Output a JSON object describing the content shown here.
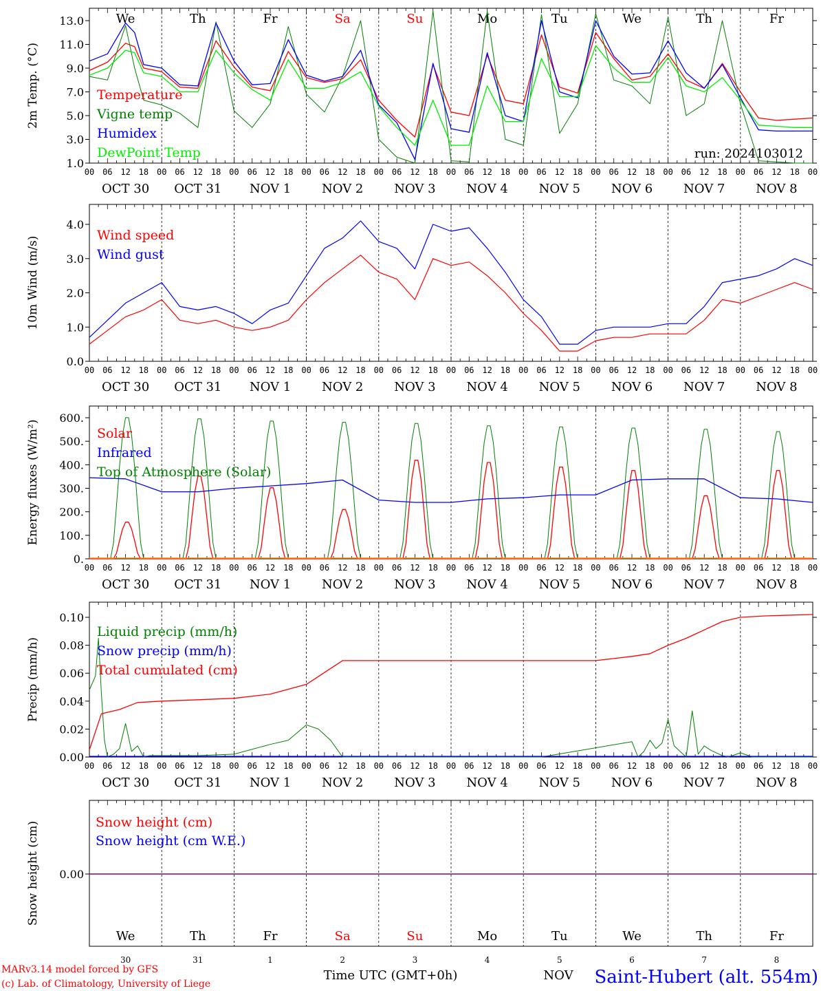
{
  "station": "Saint-Hubert (alt. 554m)",
  "credits": [
    "MARv3.14 model forced by GFS",
    "(c) Lab. of Climatology, University of Liege"
  ],
  "x_axis_title": "Time UTC (GMT+0h)",
  "bottom_overlap_text": "NOV",
  "run_label": "run: 2024103012",
  "hour_ticks": [
    "00",
    "06",
    "12",
    "18"
  ],
  "days": [
    {
      "date": "OCT 30",
      "weekday": "We",
      "daynum": "30",
      "weekend": false
    },
    {
      "date": "OCT 31",
      "weekday": "Th",
      "daynum": "31",
      "weekend": false
    },
    {
      "date": "NOV  1",
      "weekday": "Fr",
      "daynum": "1",
      "weekend": false
    },
    {
      "date": "NOV  2",
      "weekday": "Sa",
      "daynum": "2",
      "weekend": true
    },
    {
      "date": "NOV  3",
      "weekday": "Su",
      "daynum": "3",
      "weekend": true
    },
    {
      "date": "NOV  4",
      "weekday": "Mo",
      "daynum": "4",
      "weekend": false
    },
    {
      "date": "NOV  5",
      "weekday": "Tu",
      "daynum": "5",
      "weekend": false
    },
    {
      "date": "NOV  6",
      "weekday": "We",
      "daynum": "6",
      "weekend": false
    },
    {
      "date": "NOV  7",
      "weekday": "Th",
      "daynum": "7",
      "weekend": false
    },
    {
      "date": "NOV  8",
      "weekday": "Fr",
      "daynum": "8",
      "weekend": false
    }
  ],
  "colors": {
    "red": "#ff0000",
    "green": "#008000",
    "blue": "#0000ff",
    "lightgreen": "#00ee00",
    "purple": "#800080",
    "axis": "#000000"
  },
  "chart_data": [
    {
      "type": "line",
      "ylabel": "2m Temp. (°C)",
      "ylim": [
        1.0,
        14.0
      ],
      "yticks": [
        "1.0",
        "3.0",
        "5.0",
        "7.0",
        "9.0",
        "11.0",
        "13.0"
      ],
      "x_unit": "hours since OCT 30 00 UTC",
      "series": [
        {
          "name": "Temperature",
          "color": "#ff0000",
          "x": [
            0,
            6,
            12,
            15,
            18,
            24,
            30,
            36,
            42,
            48,
            54,
            60,
            66,
            72,
            78,
            84,
            90,
            96,
            102,
            108,
            114,
            120,
            126,
            132,
            138,
            144,
            150,
            156,
            162,
            168,
            174,
            180,
            186,
            192,
            198,
            204,
            210,
            216,
            222,
            228,
            234,
            240
          ],
          "y": [
            8.8,
            9.5,
            11.1,
            10.8,
            9.0,
            8.7,
            7.4,
            7.3,
            11.3,
            9.1,
            7.4,
            7.1,
            10.4,
            8.2,
            7.8,
            8.1,
            9.7,
            6.3,
            4.6,
            3.2,
            9.3,
            5.3,
            5.0,
            10.1,
            6.3,
            6.0,
            11.8,
            7.4,
            6.9,
            12.0,
            9.8,
            8.0,
            8.3,
            10.2,
            8.0,
            7.3,
            9.4,
            7.0,
            4.8,
            4.6,
            4.7,
            4.8
          ]
        },
        {
          "name": "Vigne temp",
          "color": "#008000",
          "x": [
            0,
            6,
            12,
            15,
            18,
            24,
            30,
            36,
            42,
            48,
            54,
            60,
            66,
            72,
            78,
            84,
            90,
            96,
            102,
            108,
            114,
            120,
            126,
            132,
            138,
            144,
            150,
            156,
            162,
            168,
            174,
            180,
            186,
            192,
            198,
            204,
            210,
            216,
            222,
            228,
            234,
            240
          ],
          "y": [
            8.3,
            8.0,
            12.6,
            9.0,
            6.3,
            5.9,
            5.2,
            4.0,
            12.9,
            5.4,
            4.0,
            6.0,
            12.5,
            6.8,
            5.3,
            8.3,
            13.0,
            3.0,
            1.5,
            1.0,
            13.8,
            1.2,
            1.1,
            13.8,
            3.0,
            2.5,
            13.5,
            3.5,
            6.0,
            13.6,
            8.0,
            7.5,
            6.0,
            13.3,
            5.0,
            6.0,
            13.0,
            6.0,
            1.2,
            1.1,
            1.0,
            1.0
          ]
        },
        {
          "name": "Humidex",
          "color": "#0000ff",
          "x": [
            0,
            6,
            12,
            15,
            18,
            24,
            30,
            36,
            42,
            48,
            54,
            60,
            66,
            72,
            78,
            84,
            90,
            96,
            102,
            108,
            114,
            120,
            126,
            132,
            138,
            144,
            150,
            156,
            162,
            168,
            174,
            180,
            186,
            192,
            198,
            204,
            210,
            216,
            222,
            228,
            234,
            240
          ],
          "y": [
            9.6,
            10.2,
            12.8,
            12.0,
            9.3,
            9.0,
            7.6,
            7.5,
            12.8,
            9.6,
            7.6,
            7.7,
            11.4,
            8.4,
            7.9,
            8.3,
            10.5,
            5.9,
            4.4,
            1.3,
            9.4,
            3.9,
            3.6,
            10.3,
            5.0,
            4.5,
            13.0,
            7.0,
            6.5,
            13.0,
            10.0,
            8.5,
            8.6,
            11.3,
            8.6,
            7.3,
            9.3,
            6.5,
            3.8,
            3.7,
            3.7,
            3.7
          ]
        },
        {
          "name": "DewPoint Temp",
          "color": "#00ee00",
          "x": [
            0,
            6,
            12,
            15,
            18,
            24,
            30,
            36,
            42,
            48,
            54,
            60,
            66,
            72,
            78,
            84,
            90,
            96,
            102,
            108,
            114,
            120,
            126,
            132,
            138,
            144,
            150,
            156,
            162,
            168,
            174,
            180,
            186,
            192,
            198,
            204,
            210,
            216,
            222,
            228,
            234,
            240
          ],
          "y": [
            8.4,
            9.0,
            10.5,
            10.3,
            8.6,
            8.3,
            7.0,
            7.0,
            10.5,
            8.6,
            7.2,
            6.3,
            9.7,
            7.3,
            7.3,
            7.8,
            8.7,
            5.8,
            4.0,
            2.5,
            6.3,
            2.5,
            2.5,
            7.5,
            4.5,
            4.5,
            9.8,
            6.6,
            6.6,
            10.9,
            9.0,
            7.8,
            7.8,
            9.9,
            7.5,
            7.0,
            8.2,
            6.3,
            4.2,
            4.1,
            4.0,
            4.0
          ]
        }
      ]
    },
    {
      "type": "line",
      "ylabel": "10m Wind (m/s)",
      "ylim": [
        0.0,
        4.4
      ],
      "yticks": [
        "0.0",
        "1.0",
        "2.0",
        "3.0",
        "4.0"
      ],
      "x_unit": "hours since OCT 30 00 UTC",
      "series": [
        {
          "name": "Wind speed",
          "color": "#ff0000",
          "x": [
            0,
            6,
            12,
            18,
            24,
            30,
            36,
            42,
            48,
            54,
            60,
            66,
            72,
            78,
            84,
            90,
            96,
            102,
            108,
            114,
            120,
            126,
            132,
            138,
            144,
            150,
            156,
            162,
            168,
            174,
            180,
            186,
            192,
            198,
            204,
            210,
            216,
            222,
            228,
            234,
            240
          ],
          "y": [
            0.5,
            0.9,
            1.3,
            1.5,
            1.8,
            1.2,
            1.1,
            1.2,
            1.0,
            0.9,
            1.0,
            1.2,
            1.8,
            2.3,
            2.7,
            3.1,
            2.6,
            2.4,
            1.8,
            3.0,
            2.8,
            2.9,
            2.5,
            2.0,
            1.4,
            0.9,
            0.3,
            0.3,
            0.6,
            0.7,
            0.7,
            0.8,
            0.8,
            0.8,
            1.2,
            1.8,
            1.7,
            1.9,
            2.1,
            2.3,
            2.1
          ]
        },
        {
          "name": "Wind gust",
          "color": "#0000ff",
          "x": [
            0,
            6,
            12,
            18,
            24,
            30,
            36,
            42,
            48,
            54,
            60,
            66,
            72,
            78,
            84,
            90,
            96,
            102,
            108,
            114,
            120,
            126,
            132,
            138,
            144,
            150,
            156,
            162,
            168,
            174,
            180,
            186,
            192,
            198,
            204,
            210,
            216,
            222,
            228,
            234,
            240
          ],
          "y": [
            0.7,
            1.2,
            1.7,
            2.0,
            2.3,
            1.6,
            1.5,
            1.6,
            1.4,
            1.1,
            1.5,
            1.7,
            2.5,
            3.3,
            3.6,
            4.1,
            3.5,
            3.3,
            2.7,
            4.0,
            3.8,
            3.9,
            3.3,
            2.6,
            1.8,
            1.3,
            0.5,
            0.5,
            0.9,
            1.0,
            1.0,
            1.0,
            1.1,
            1.1,
            1.6,
            2.3,
            2.4,
            2.5,
            2.7,
            3.0,
            2.8
          ]
        }
      ]
    },
    {
      "type": "line",
      "ylabel": "Energy fluxes (W/m²)",
      "ylim": [
        0,
        650
      ],
      "yticks": [
        "0.",
        "100.",
        "200.",
        "300.",
        "400.",
        "500.",
        "600."
      ],
      "x_unit": "hours since OCT 30 00 UTC",
      "series": [
        {
          "name": "Solar",
          "color": "#ff0000",
          "diurnal_peaks": [
            160,
            360,
            310,
            215,
            430,
            420,
            400,
            385,
            275,
            385
          ]
        },
        {
          "name": "Infrared",
          "color": "#0000ff",
          "x": [
            0,
            12,
            24,
            36,
            48,
            60,
            72,
            84,
            96,
            108,
            120,
            132,
            144,
            156,
            168,
            180,
            192,
            204,
            216,
            228,
            240
          ],
          "y": [
            345,
            340,
            285,
            285,
            300,
            310,
            320,
            335,
            250,
            240,
            240,
            255,
            260,
            272,
            272,
            335,
            340,
            340,
            260,
            255,
            240
          ]
        },
        {
          "name": "Top of Atmosphere (Solar)",
          "color": "#008000",
          "diurnal_peaks": [
            610,
            605,
            595,
            590,
            585,
            575,
            570,
            565,
            560,
            550
          ]
        }
      ]
    },
    {
      "type": "line",
      "ylabel": "Precip (mm/h)",
      "ylim": [
        0.0,
        0.11
      ],
      "yticks": [
        "0.00",
        "0.02",
        "0.04",
        "0.06",
        "0.08",
        "0.10"
      ],
      "x_unit": "hours since OCT 30 00 UTC",
      "series": [
        {
          "name": "Liquid precip (mm/h)",
          "color": "#008000",
          "x": [
            0,
            2,
            3,
            4,
            5,
            6,
            8,
            10,
            12,
            14,
            16,
            18,
            20,
            24,
            36,
            48,
            60,
            66,
            72,
            76,
            80,
            84,
            88,
            92,
            96,
            150,
            180,
            182,
            184,
            186,
            188,
            190,
            192,
            194,
            196,
            198,
            200,
            202,
            204,
            206,
            208,
            210,
            212,
            216,
            220,
            240
          ],
          "y": [
            0.048,
            0.058,
            0.085,
            0.045,
            0.012,
            0.0,
            0.002,
            0.006,
            0.024,
            0.004,
            0.008,
            0.0,
            0.001,
            0.001,
            0.001,
            0.002,
            0.009,
            0.012,
            0.023,
            0.02,
            0.012,
            0.0,
            0.0,
            0.0,
            0.0,
            0.0,
            0.011,
            0.0,
            0.004,
            0.012,
            0.006,
            0.01,
            0.027,
            0.008,
            0.004,
            0.0,
            0.033,
            0.002,
            0.008,
            0.005,
            0.003,
            0.001,
            0.0,
            0.003,
            0.0,
            0.0
          ]
        },
        {
          "name": "Snow precip (mm/h)",
          "color": "#0000ff",
          "x": [
            0,
            240
          ],
          "y": [
            0.0,
            0.0
          ]
        },
        {
          "name": "Total cumulated (cm)",
          "color": "#ff0000",
          "x": [
            0,
            4,
            10,
            16,
            24,
            36,
            48,
            60,
            72,
            84,
            96,
            108,
            120,
            132,
            144,
            156,
            168,
            180,
            186,
            192,
            198,
            204,
            210,
            216,
            224,
            240
          ],
          "y": [
            0.005,
            0.031,
            0.034,
            0.039,
            0.04,
            0.041,
            0.042,
            0.045,
            0.052,
            0.069,
            0.069,
            0.069,
            0.069,
            0.069,
            0.069,
            0.069,
            0.069,
            0.072,
            0.074,
            0.08,
            0.085,
            0.091,
            0.097,
            0.1,
            0.101,
            0.102
          ]
        }
      ]
    },
    {
      "type": "line",
      "ylabel": "Snow height (cm)",
      "yticks": [
        "0.00"
      ],
      "series": [
        {
          "name": "Snow height (cm)",
          "color": "#ff0000",
          "x": [
            0,
            240
          ],
          "y": [
            0.0,
            0.0
          ]
        },
        {
          "name": "Snow height (cm W.E.)",
          "color": "#0000ff",
          "x": [
            0,
            240
          ],
          "y": [
            0.0,
            0.0
          ]
        }
      ]
    }
  ]
}
